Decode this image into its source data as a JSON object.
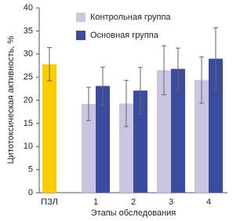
{
  "chart_data": {
    "type": "bar",
    "y_label": "Цитотоксическая активность, %",
    "x_label": "Этапы обследования",
    "categories": [
      "ПЗЛ",
      "1",
      "2",
      "3",
      "4"
    ],
    "series": [
      {
        "color": "#ffcc00",
        "values": [
          27.8,
          null,
          null,
          null,
          null
        ],
        "errors": [
          3.6,
          null,
          null,
          null,
          null
        ]
      },
      {
        "name": "Контрольная группа",
        "color": "#c9c6e2",
        "values": [
          null,
          19.2,
          19.3,
          26.5,
          24.4
        ],
        "errors": [
          null,
          3.6,
          5,
          5.3,
          5
        ]
      },
      {
        "name": "Основная группа",
        "color": "#3b4b9e",
        "values": [
          null,
          23.1,
          22.1,
          26.8,
          29
        ],
        "errors": [
          null,
          4.1,
          5,
          4.5,
          6.7
        ]
      }
    ],
    "ylim": [
      0,
      40
    ],
    "yticks": [
      0,
      5,
      10,
      15,
      20,
      25,
      30,
      35,
      40
    ],
    "legend": "upper left"
  }
}
